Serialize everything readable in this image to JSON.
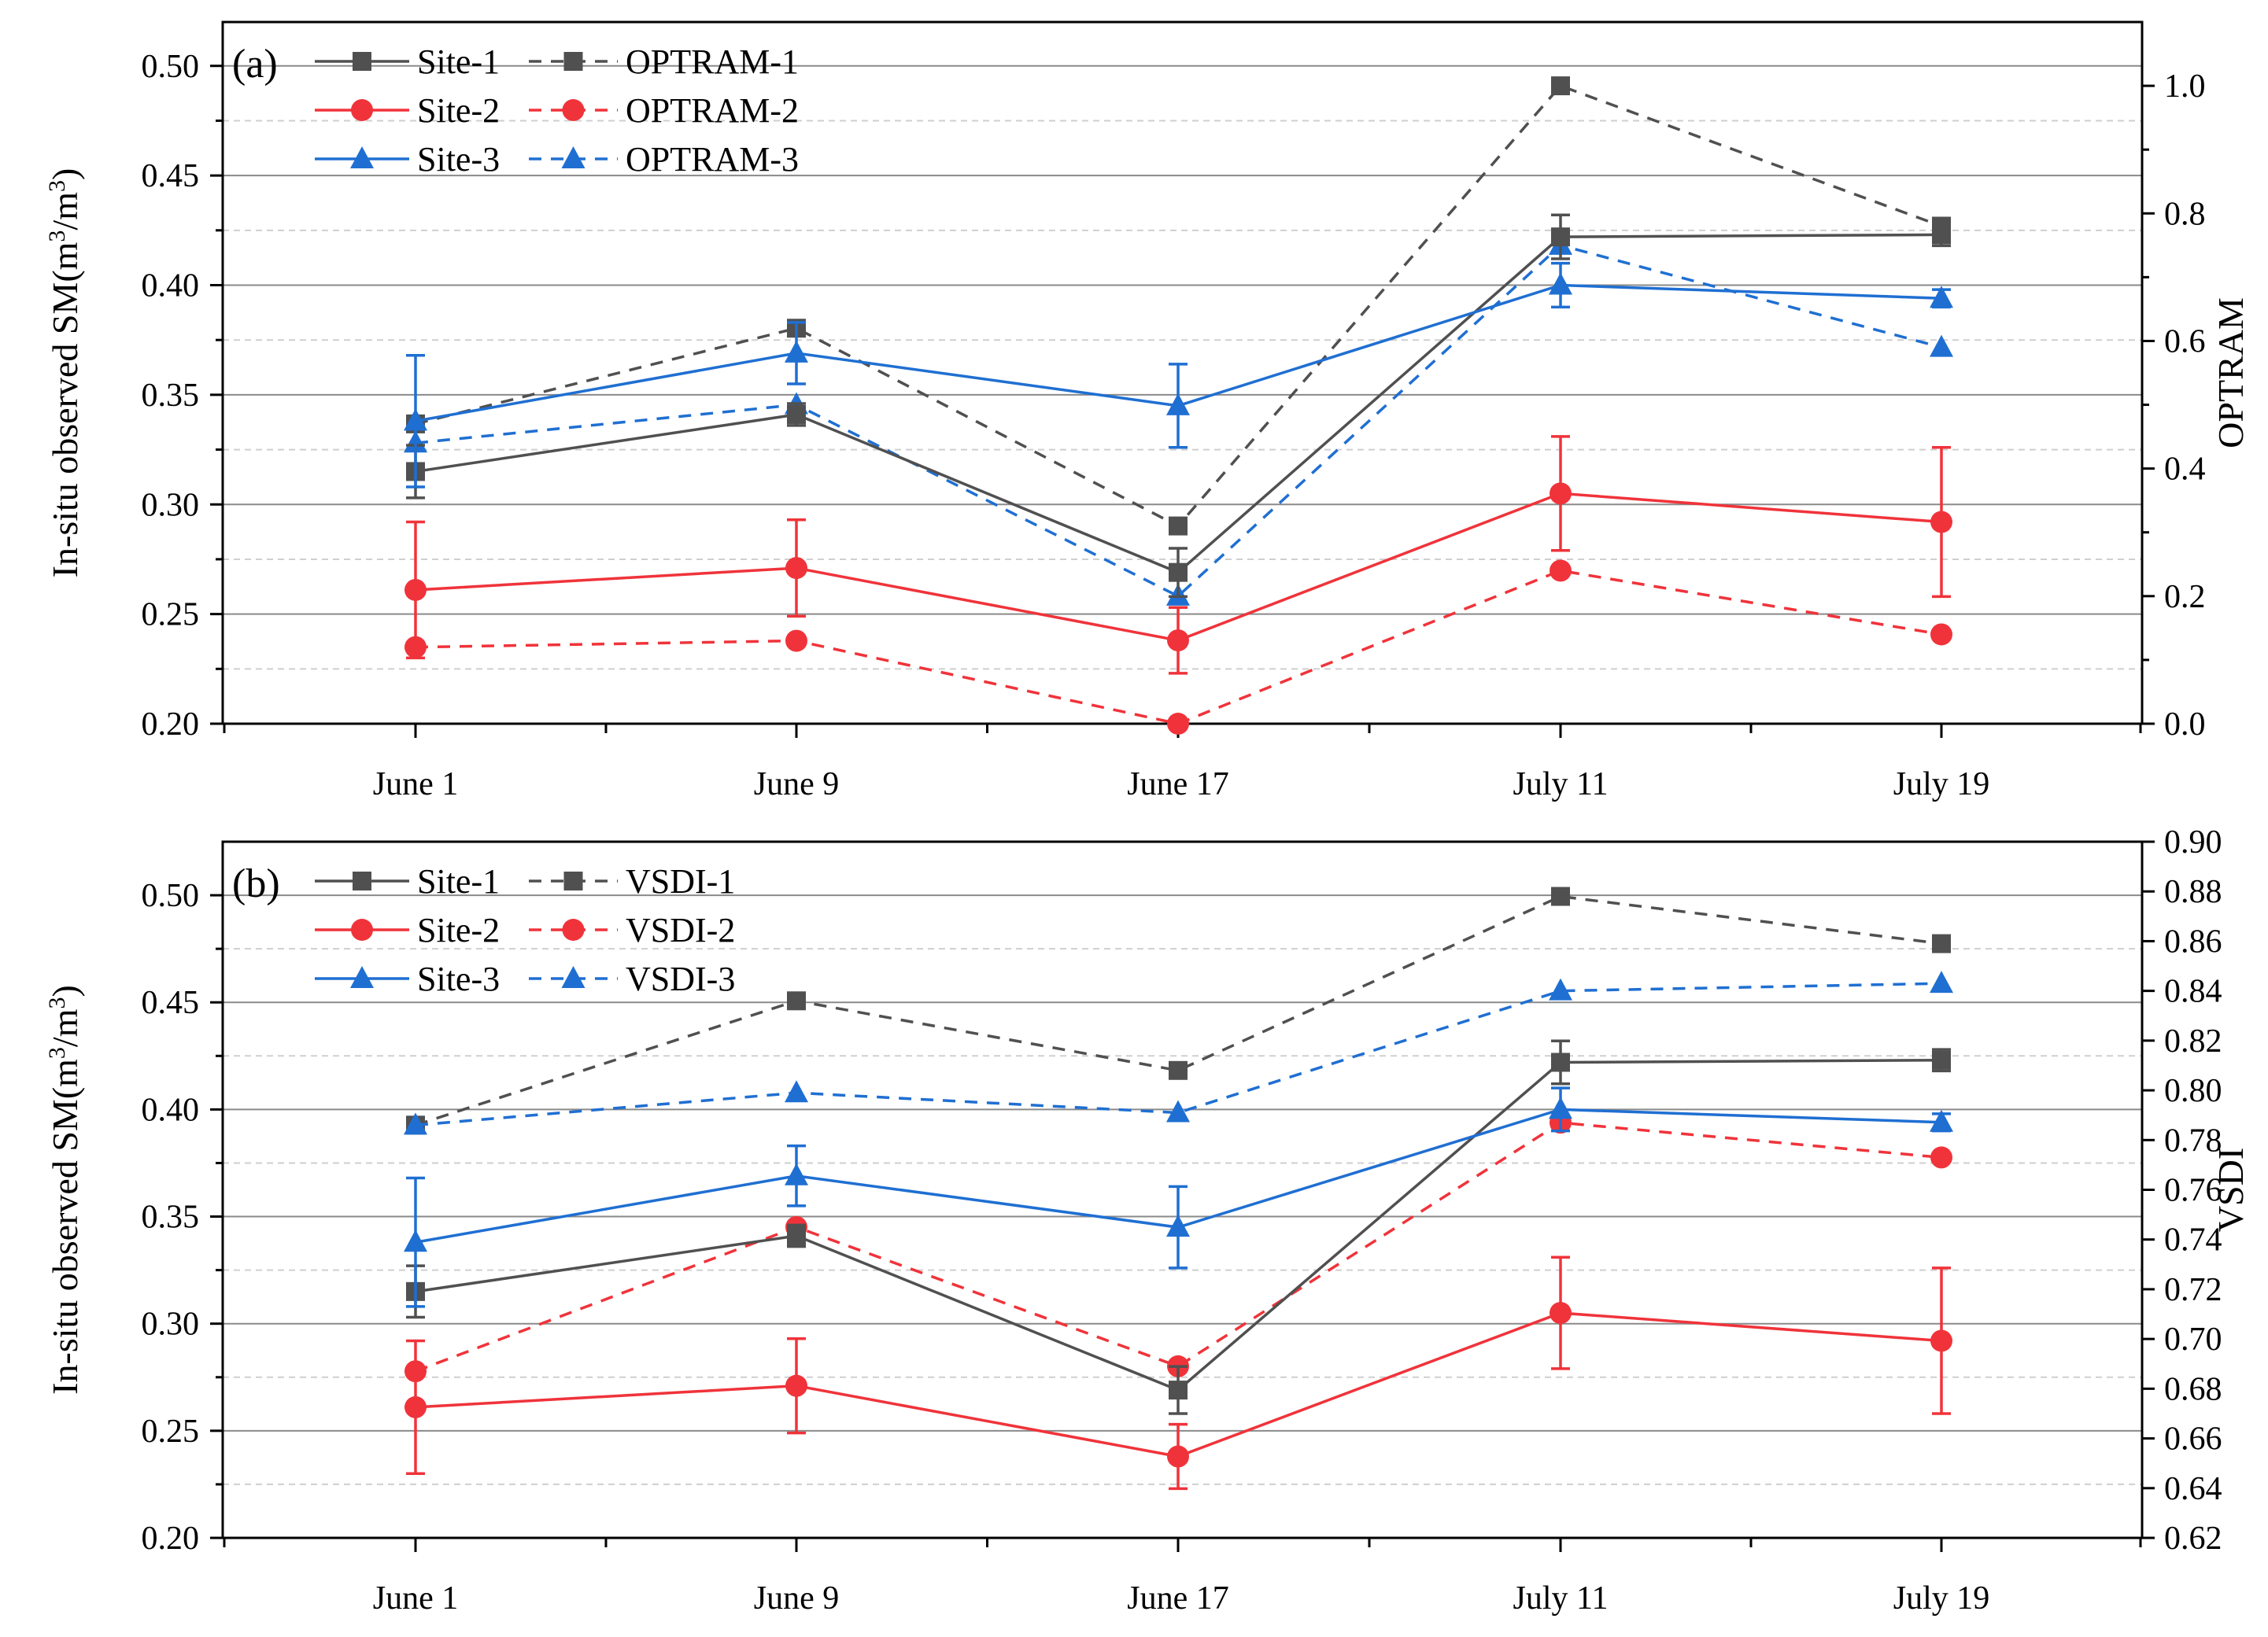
{
  "chart_data": [
    {
      "panel": "(a)",
      "type": "line",
      "categories": [
        "June 1",
        "June 9",
        "June 17",
        "July 11",
        "July 19"
      ],
      "ylabel_left": "In-situ observed SM(m3/m3)",
      "ylabel_left_parts": [
        "In-situ observed SM(m",
        "3",
        "/m",
        "3",
        ")"
      ],
      "ylabel_right": "OPTRAM",
      "ylim_left": [
        0.2,
        0.52
      ],
      "yticks_left": [
        "0.20",
        "0.25",
        "0.30",
        "0.35",
        "0.40",
        "0.45",
        "0.50"
      ],
      "ylim_right": [
        0.0,
        1.1
      ],
      "yticks_right": [
        "0.0",
        "0.2",
        "0.4",
        "0.6",
        "0.8",
        "1.0"
      ],
      "grid": true,
      "legend_position": "top-left",
      "series": [
        {
          "name": "Site-1",
          "axis": "left",
          "style": "solid",
          "marker": "square",
          "color": "#505050",
          "values": [
            0.315,
            0.341,
            0.269,
            0.422,
            0.423
          ],
          "error": [
            0.012,
            0.005,
            0.011,
            0.01,
            0.005
          ]
        },
        {
          "name": "Site-2",
          "axis": "left",
          "style": "solid",
          "marker": "circle",
          "color": "#f0333a",
          "values": [
            0.261,
            0.271,
            0.238,
            0.305,
            0.292
          ],
          "error": [
            0.031,
            0.022,
            0.015,
            0.026,
            0.034
          ]
        },
        {
          "name": "Site-3",
          "axis": "left",
          "style": "solid",
          "marker": "triangle",
          "color": "#1f6fd2",
          "values": [
            0.338,
            0.369,
            0.345,
            0.4,
            0.394
          ],
          "error": [
            0.03,
            0.014,
            0.019,
            0.01,
            0.004
          ]
        },
        {
          "name": "OPTRAM-1",
          "axis": "right",
          "style": "dashed",
          "marker": "square",
          "color": "#505050",
          "values": [
            0.47,
            0.62,
            0.31,
            1.0,
            0.78
          ]
        },
        {
          "name": "OPTRAM-2",
          "axis": "right",
          "style": "dashed",
          "marker": "circle",
          "color": "#f0333a",
          "values": [
            0.12,
            0.13,
            0.0,
            0.24,
            0.14
          ]
        },
        {
          "name": "OPTRAM-3",
          "axis": "right",
          "style": "dashed",
          "marker": "triangle",
          "color": "#1f6fd2",
          "values": [
            0.44,
            0.5,
            0.2,
            0.75,
            0.59
          ]
        }
      ]
    },
    {
      "panel": "(b)",
      "type": "line",
      "categories": [
        "June 1",
        "June 9",
        "June 17",
        "July 11",
        "July 19"
      ],
      "ylabel_left": "In-situ observed SM(m3/m3)",
      "ylabel_left_parts": [
        "In-situ observed SM(m",
        "3",
        "/m",
        "3",
        ")"
      ],
      "ylabel_right": "VSDI",
      "ylim_left": [
        0.2,
        0.525
      ],
      "yticks_left": [
        "0.20",
        "0.25",
        "0.30",
        "0.35",
        "0.40",
        "0.45",
        "0.50"
      ],
      "ylim_right": [
        0.62,
        0.9
      ],
      "yticks_right": [
        "0.62",
        "0.64",
        "0.66",
        "0.68",
        "0.70",
        "0.72",
        "0.74",
        "0.76",
        "0.78",
        "0.80",
        "0.82",
        "0.84",
        "0.86",
        "0.88",
        "0.90"
      ],
      "grid": true,
      "legend_position": "top-left",
      "series": [
        {
          "name": "Site-1",
          "axis": "left",
          "style": "solid",
          "marker": "square",
          "color": "#505050",
          "values": [
            0.315,
            0.341,
            0.269,
            0.422,
            0.423
          ],
          "error": [
            0.012,
            0.005,
            0.011,
            0.01,
            0.005
          ]
        },
        {
          "name": "Site-2",
          "axis": "left",
          "style": "solid",
          "marker": "circle",
          "color": "#f0333a",
          "values": [
            0.261,
            0.271,
            0.238,
            0.305,
            0.292
          ],
          "error": [
            0.031,
            0.022,
            0.015,
            0.026,
            0.034
          ]
        },
        {
          "name": "Site-3",
          "axis": "left",
          "style": "solid",
          "marker": "triangle",
          "color": "#1f6fd2",
          "values": [
            0.338,
            0.369,
            0.345,
            0.4,
            0.394
          ],
          "error": [
            0.03,
            0.014,
            0.019,
            0.01,
            0.004
          ]
        },
        {
          "name": "VSDI-1",
          "axis": "right",
          "style": "dashed",
          "marker": "square",
          "color": "#505050",
          "values": [
            0.786,
            0.836,
            0.808,
            0.878,
            0.859
          ]
        },
        {
          "name": "VSDI-2",
          "axis": "right",
          "style": "dashed",
          "marker": "circle",
          "color": "#f0333a",
          "values": [
            0.687,
            0.745,
            0.689,
            0.787,
            0.773
          ]
        },
        {
          "name": "VSDI-3",
          "axis": "right",
          "style": "dashed",
          "marker": "triangle",
          "color": "#1f6fd2",
          "values": [
            0.786,
            0.799,
            0.791,
            0.84,
            0.843
          ]
        }
      ]
    }
  ]
}
